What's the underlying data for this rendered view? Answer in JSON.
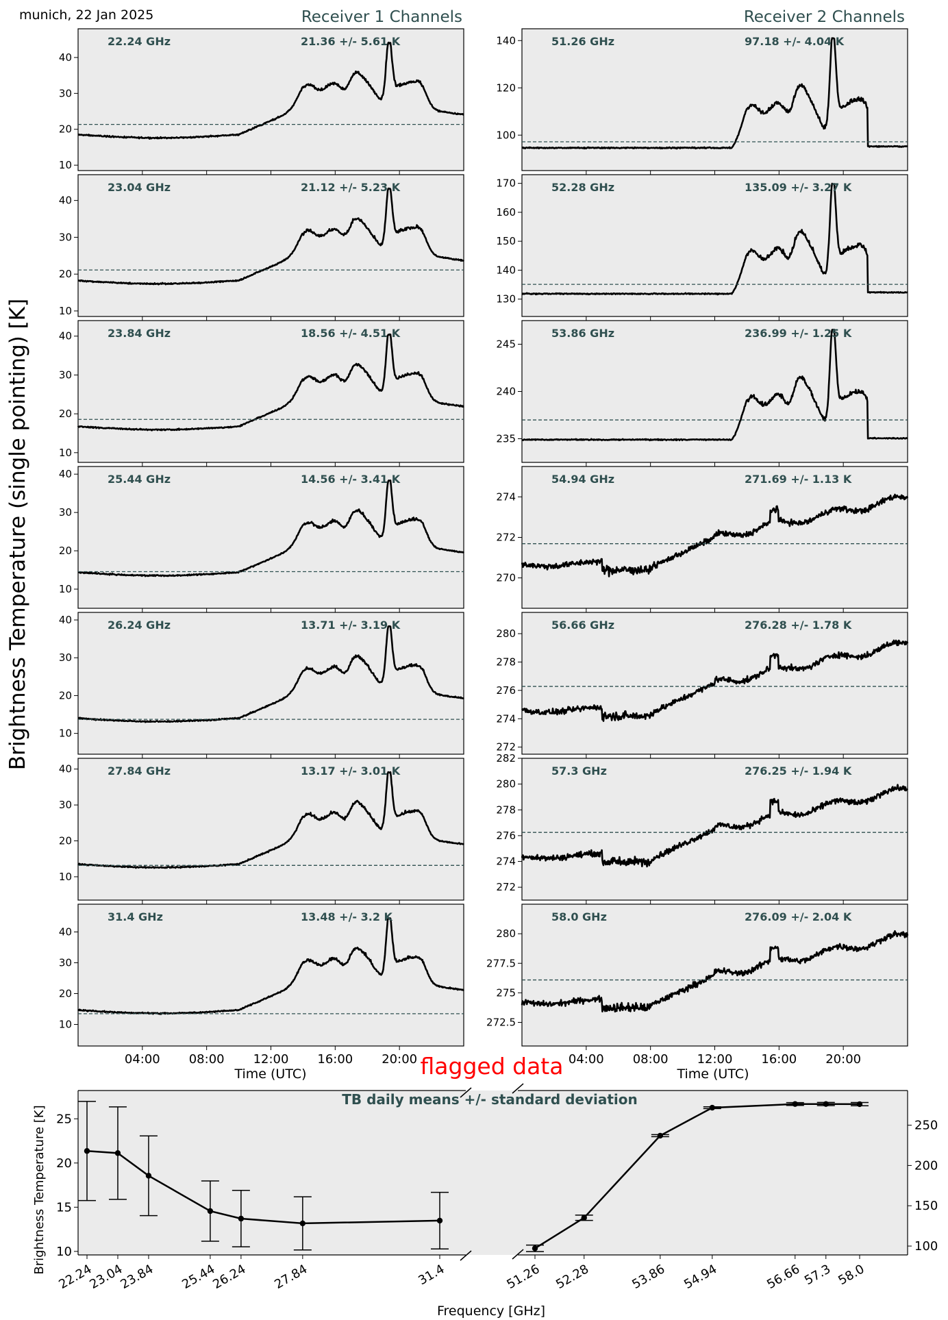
{
  "header": {
    "location_date": "munich, 22 Jan 2025",
    "receiver1_title": "Receiver 1 Channels",
    "receiver2_title": "Receiver 2 Channels",
    "ylabel": "Brightness Temperature (single pointing) [K]",
    "xlabel": "Time (UTC)"
  },
  "colors": {
    "panel_bg": "#ebebeb",
    "annotation": "#2f4f4f",
    "flag": "#ff0000",
    "line": "#000000"
  },
  "chart_data": [
    {
      "type": "line",
      "receiver": "Receiver 1 Channels",
      "xlabel": "Time (UTC)",
      "xticks": [
        "04:00",
        "08:00",
        "12:00",
        "16:00",
        "20:00"
      ],
      "x_range_hours": [
        0,
        24
      ],
      "panels": [
        {
          "channel": "22.24 GHz",
          "stat": "21.36 +/- 5.61 K",
          "mean": 21.36,
          "ylim": [
            8.5,
            48
          ],
          "yticks": [
            10,
            20,
            30,
            40
          ]
        },
        {
          "channel": "23.04 GHz",
          "stat": "21.12 +/- 5.23 K",
          "mean": 21.12,
          "ylim": [
            8.5,
            47
          ],
          "yticks": [
            10,
            20,
            30,
            40
          ]
        },
        {
          "channel": "23.84 GHz",
          "stat": "18.56 +/- 4.51 K",
          "mean": 18.56,
          "ylim": [
            7.5,
            44
          ],
          "yticks": [
            10,
            20,
            30,
            40
          ]
        },
        {
          "channel": "25.44 GHz",
          "stat": "14.56 +/- 3.41 K",
          "mean": 14.56,
          "ylim": [
            5,
            42
          ],
          "yticks": [
            10,
            20,
            30,
            40
          ]
        },
        {
          "channel": "26.24 GHz",
          "stat": "13.71 +/- 3.19 K",
          "mean": 13.71,
          "ylim": [
            4.5,
            42
          ],
          "yticks": [
            10,
            20,
            30,
            40
          ]
        },
        {
          "channel": "27.84 GHz",
          "stat": "13.17 +/- 3.01 K",
          "mean": 13.17,
          "ylim": [
            3.5,
            43
          ],
          "yticks": [
            10,
            20,
            30,
            40
          ]
        },
        {
          "channel": "31.4 GHz",
          "stat": "13.48 +/- 3.2 K",
          "mean": 13.48,
          "ylim": [
            3,
            49
          ],
          "yticks": [
            10,
            20,
            30,
            40
          ]
        }
      ]
    },
    {
      "type": "line",
      "receiver": "Receiver 2 Channels",
      "xlabel": "Time (UTC)",
      "xticks": [
        "04:00",
        "08:00",
        "12:00",
        "16:00",
        "20:00"
      ],
      "x_range_hours": [
        0,
        24
      ],
      "panels": [
        {
          "channel": "51.26 GHz",
          "stat": "97.18 +/- 4.04 K",
          "mean": 97.18,
          "ylim": [
            85,
            145
          ],
          "yticks": [
            100,
            120,
            140
          ]
        },
        {
          "channel": "52.28 GHz",
          "stat": "135.09 +/- 3.27 K",
          "mean": 135.09,
          "ylim": [
            124,
            173
          ],
          "yticks": [
            130,
            140,
            150,
            160,
            170
          ]
        },
        {
          "channel": "53.86 GHz",
          "stat": "236.99 +/- 1.25 K",
          "mean": 236.99,
          "ylim": [
            232.5,
            247.5
          ],
          "yticks": [
            235,
            240,
            245
          ]
        },
        {
          "channel": "54.94 GHz",
          "stat": "271.69 +/- 1.13 K",
          "mean": 271.69,
          "ylim": [
            268.5,
            275.5
          ],
          "yticks": [
            270,
            272,
            274
          ]
        },
        {
          "channel": "56.66 GHz",
          "stat": "276.28 +/- 1.78 K",
          "mean": 276.28,
          "ylim": [
            271.5,
            281.5
          ],
          "yticks": [
            272,
            274,
            276,
            278,
            280
          ]
        },
        {
          "channel": "57.3 GHz",
          "stat": "276.25 +/- 1.94 K",
          "mean": 276.25,
          "ylim": [
            271,
            282
          ],
          "yticks": [
            272,
            274,
            276,
            278,
            280,
            282
          ]
        },
        {
          "channel": "58.0 GHz",
          "stat": "276.09 +/- 2.04 K",
          "mean": 276.09,
          "ylim": [
            270.5,
            282.5
          ],
          "yticks": [
            272.5,
            275.0,
            277.5,
            280.0
          ]
        }
      ]
    },
    {
      "type": "line",
      "title": "TB daily means +/- standard deviation",
      "flag_label": "flagged data",
      "xlabel": "Frequency [GHz]",
      "ylabel": "Brightness Temperature [K]",
      "left": {
        "x": [
          22.24,
          23.04,
          23.84,
          25.44,
          26.24,
          27.84,
          31.4
        ],
        "xticklabels": [
          "22.24",
          "23.04",
          "23.84",
          "25.44",
          "26.24",
          "27.84",
          "31.4"
        ],
        "y": [
          21.36,
          21.12,
          18.56,
          14.56,
          13.71,
          13.17,
          13.48
        ],
        "err": [
          5.61,
          5.23,
          4.51,
          3.41,
          3.19,
          3.01,
          3.2
        ],
        "ylim": [
          9.6,
          28.2
        ],
        "yticks": [
          10,
          15,
          20,
          25
        ]
      },
      "right": {
        "x": [
          51.26,
          52.28,
          53.86,
          54.94,
          56.66,
          57.3,
          58.0
        ],
        "xticklabels": [
          "51.26",
          "52.28",
          "53.86",
          "54.94",
          "56.66",
          "57.3",
          "58.0"
        ],
        "y": [
          97.18,
          135.09,
          236.99,
          271.69,
          276.28,
          276.25,
          276.09
        ],
        "err": [
          4.04,
          3.27,
          1.25,
          1.13,
          1.78,
          1.94,
          2.04
        ],
        "ylim": [
          89,
          293
        ],
        "yticks": [
          100,
          150,
          200,
          250
        ]
      }
    }
  ]
}
